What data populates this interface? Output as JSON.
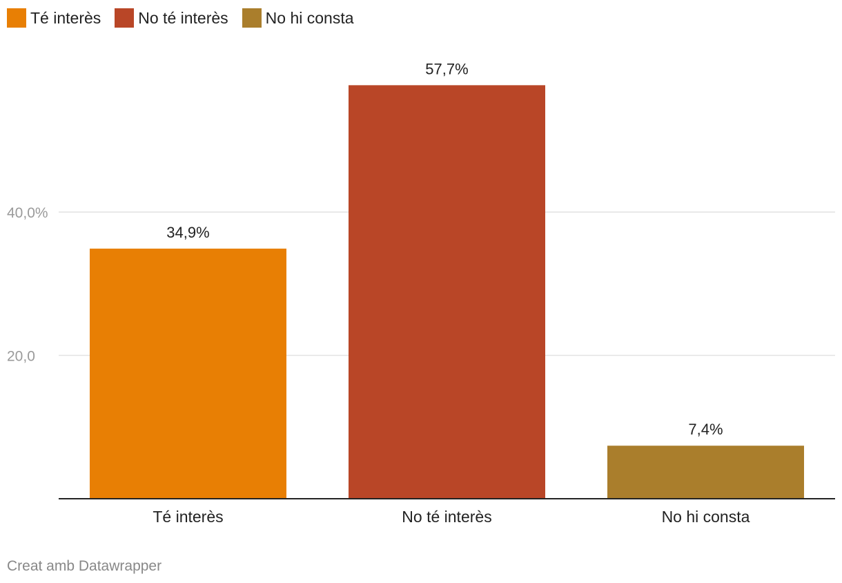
{
  "legend": [
    {
      "label": "Té interès",
      "color": "#E87F04"
    },
    {
      "label": "No té interès",
      "color": "#B94627"
    },
    {
      "label": "No hi consta",
      "color": "#AA7E2C"
    }
  ],
  "footer": "Creat amb Datawrapper",
  "chart_data": {
    "type": "bar",
    "categories": [
      "Té interès",
      "No té interès",
      "No hi consta"
    ],
    "values": [
      34.9,
      57.7,
      7.4
    ],
    "data_labels": [
      "34,9%",
      "57,7%",
      "7,4%"
    ],
    "colors": [
      "#E87F04",
      "#B94627",
      "#AA7E2C"
    ],
    "yticks": [
      {
        "value": 20,
        "label": "20,0"
      },
      {
        "value": 40,
        "label": "40,0%"
      }
    ],
    "ylim": [
      0,
      60
    ],
    "grid": true,
    "legend_position": "top-left",
    "title": "",
    "xlabel": "",
    "ylabel": ""
  }
}
